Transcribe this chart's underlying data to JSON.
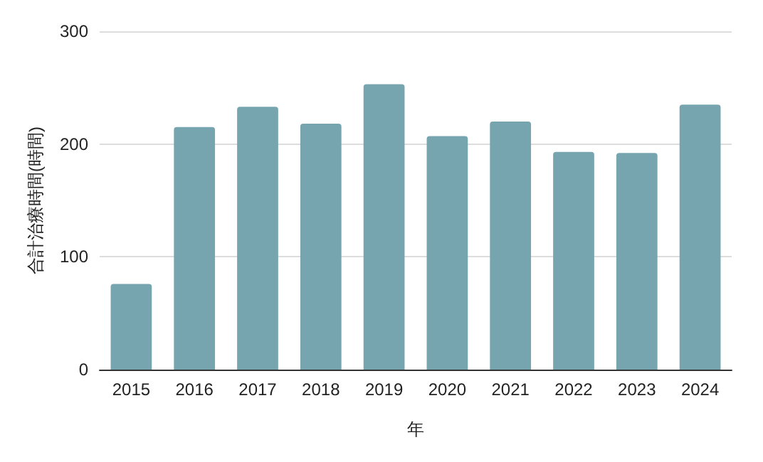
{
  "chart_data": {
    "type": "bar",
    "xlabel": "年",
    "ylabel": "合計治療時間(時間)",
    "categories": [
      "2015",
      "2016",
      "2017",
      "2018",
      "2019",
      "2020",
      "2021",
      "2022",
      "2023",
      "2024"
    ],
    "values": [
      76,
      215,
      233,
      218,
      253,
      207,
      220,
      193,
      192,
      235
    ],
    "color": "#76a5af",
    "ylim": [
      0,
      300
    ],
    "yticks": [
      0,
      100,
      200,
      300
    ],
    "grid": "y"
  }
}
